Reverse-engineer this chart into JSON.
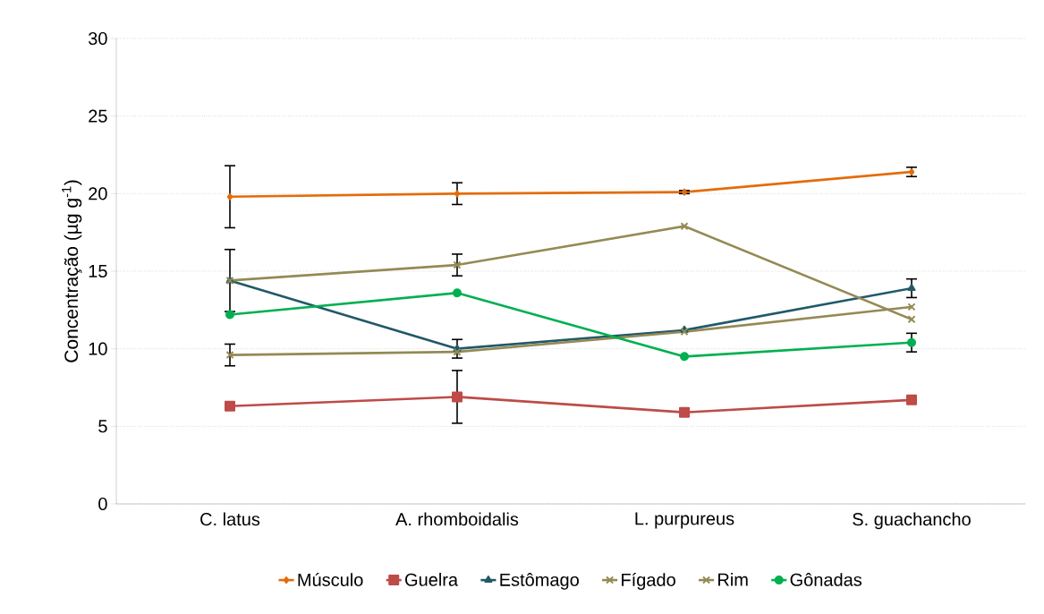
{
  "chart_data": {
    "type": "line",
    "ylabel": "Concentração (µg g$^{-1}$)",
    "categories": [
      "C. latus",
      "A. rhomboidalis",
      "L. purpureus",
      "S. guachancho"
    ],
    "ylim": [
      0,
      30
    ],
    "yticks": [
      0,
      5,
      10,
      15,
      20,
      25,
      30
    ],
    "grid": "y",
    "legend": "bottom",
    "series": [
      {
        "name": "Músculo",
        "color": "#e36c0a",
        "marker": "diamond",
        "values": [
          19.8,
          20.0,
          20.1,
          21.4
        ],
        "errors": [
          2.0,
          0.7,
          0.1,
          0.3
        ]
      },
      {
        "name": "Guelra",
        "color": "#be4b48",
        "marker": "square",
        "values": [
          6.3,
          6.9,
          5.9,
          6.7
        ],
        "errors": [
          null,
          1.7,
          null,
          null
        ]
      },
      {
        "name": "Estômago",
        "color": "#215968",
        "marker": "triangle",
        "values": [
          14.4,
          10.0,
          11.2,
          13.9
        ],
        "errors": [
          null,
          0.6,
          null,
          0.6
        ]
      },
      {
        "name": "Fígado",
        "color": "#948a54",
        "marker": "cross",
        "values": [
          9.6,
          9.8,
          11.1,
          12.7
        ],
        "errors": [
          0.7,
          null,
          null,
          null
        ]
      },
      {
        "name": "Rim",
        "color": "#948a54",
        "marker": "cross",
        "values": [
          14.4,
          15.4,
          17.9,
          11.9
        ],
        "errors": [
          2.0,
          0.7,
          null,
          null
        ]
      },
      {
        "name": "Gônadas",
        "color": "#00b050",
        "marker": "circle",
        "values": [
          12.2,
          13.6,
          9.5,
          10.4
        ],
        "errors": [
          null,
          null,
          null,
          0.6
        ]
      }
    ]
  }
}
